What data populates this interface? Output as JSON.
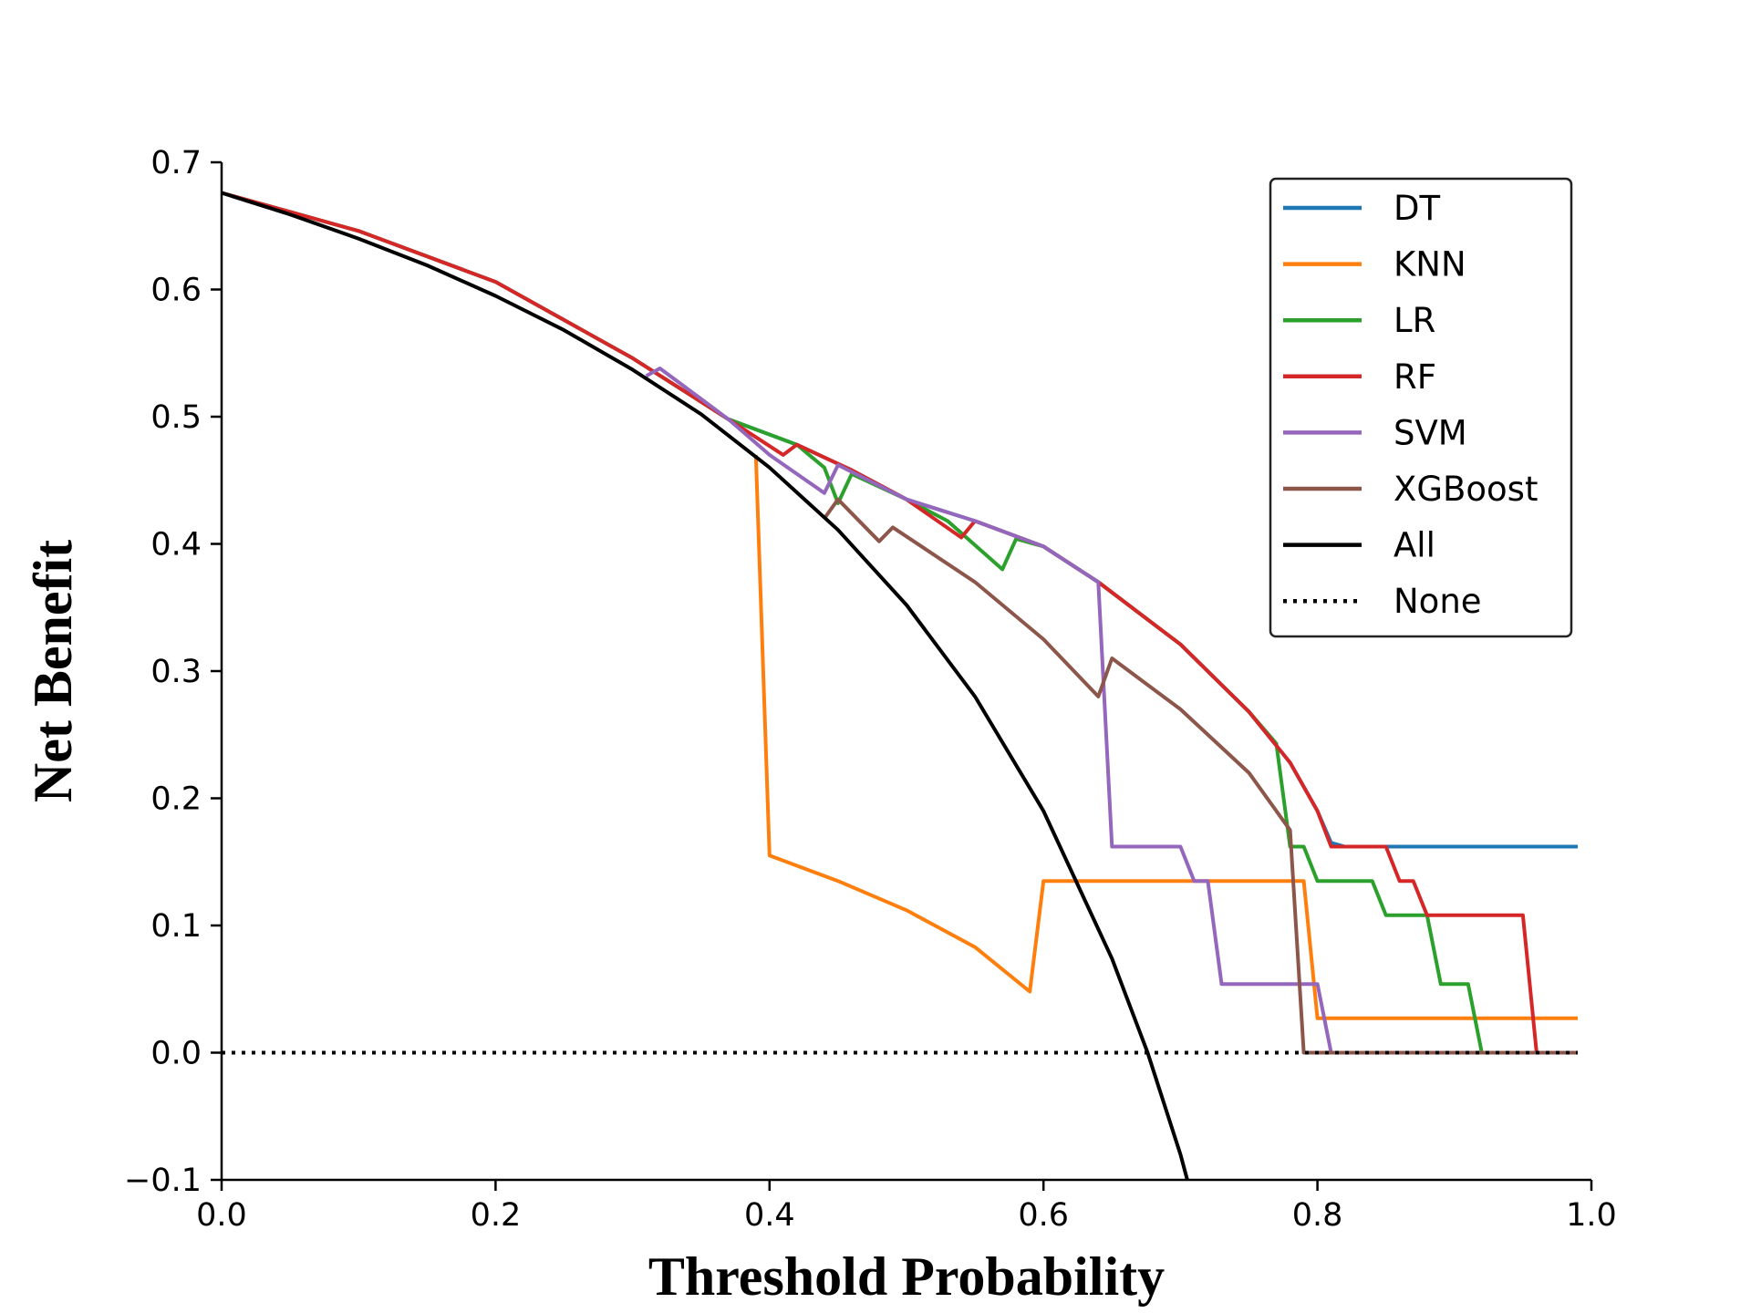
{
  "chart_data": {
    "type": "line",
    "title": "",
    "xlabel": "Threshold Probability",
    "ylabel": "Net Benefit",
    "xlim": [
      0.0,
      1.0
    ],
    "ylim": [
      -0.1,
      0.7
    ],
    "x_ticks": [
      "0.0",
      "0.2",
      "0.4",
      "0.6",
      "0.8",
      "1.0"
    ],
    "y_ticks": [
      "−0.1",
      "0.0",
      "0.1",
      "0.2",
      "0.3",
      "0.4",
      "0.5",
      "0.6",
      "0.7"
    ],
    "grid": false,
    "legend_position": "top-right",
    "series": [
      {
        "name": "DT",
        "color": "#1f77b4",
        "style": "solid",
        "points": [
          [
            0,
            0.676
          ],
          [
            0.1,
            0.646
          ],
          [
            0.2,
            0.606
          ],
          [
            0.3,
            0.546
          ],
          [
            0.37,
            0.498
          ],
          [
            0.42,
            0.478
          ],
          [
            0.46,
            0.458
          ],
          [
            0.5,
            0.435
          ],
          [
            0.55,
            0.418
          ],
          [
            0.6,
            0.398
          ],
          [
            0.64,
            0.37
          ],
          [
            0.7,
            0.321
          ],
          [
            0.75,
            0.268
          ],
          [
            0.78,
            0.228
          ],
          [
            0.8,
            0.19
          ],
          [
            0.81,
            0.165
          ],
          [
            0.82,
            0.162
          ],
          [
            0.99,
            0.162
          ]
        ]
      },
      {
        "name": "KNN",
        "color": "#ff7f0e",
        "style": "solid",
        "points": [
          [
            0.39,
            0.47
          ],
          [
            0.4,
            0.155
          ],
          [
            0.45,
            0.135
          ],
          [
            0.5,
            0.112
          ],
          [
            0.55,
            0.083
          ],
          [
            0.59,
            0.048
          ],
          [
            0.6,
            0.135
          ],
          [
            0.79,
            0.135
          ],
          [
            0.8,
            0.027
          ],
          [
            0.99,
            0.027
          ]
        ]
      },
      {
        "name": "LR",
        "color": "#2ca02c",
        "style": "solid",
        "points": [
          [
            0,
            0.676
          ],
          [
            0.1,
            0.646
          ],
          [
            0.2,
            0.606
          ],
          [
            0.3,
            0.546
          ],
          [
            0.37,
            0.498
          ],
          [
            0.42,
            0.478
          ],
          [
            0.44,
            0.46
          ],
          [
            0.45,
            0.432
          ],
          [
            0.46,
            0.455
          ],
          [
            0.5,
            0.435
          ],
          [
            0.53,
            0.418
          ],
          [
            0.57,
            0.38
          ],
          [
            0.58,
            0.404
          ],
          [
            0.6,
            0.398
          ],
          [
            0.64,
            0.37
          ],
          [
            0.7,
            0.321
          ],
          [
            0.75,
            0.268
          ],
          [
            0.77,
            0.243
          ],
          [
            0.78,
            0.162
          ],
          [
            0.79,
            0.162
          ],
          [
            0.8,
            0.135
          ],
          [
            0.84,
            0.135
          ],
          [
            0.85,
            0.108
          ],
          [
            0.88,
            0.108
          ],
          [
            0.89,
            0.054
          ],
          [
            0.91,
            0.054
          ],
          [
            0.92,
            0.0
          ],
          [
            0.99,
            0.0
          ]
        ]
      },
      {
        "name": "RF",
        "color": "#d62728",
        "style": "solid",
        "points": [
          [
            0,
            0.676
          ],
          [
            0.1,
            0.646
          ],
          [
            0.2,
            0.606
          ],
          [
            0.3,
            0.546
          ],
          [
            0.37,
            0.498
          ],
          [
            0.41,
            0.47
          ],
          [
            0.42,
            0.478
          ],
          [
            0.46,
            0.458
          ],
          [
            0.5,
            0.435
          ],
          [
            0.54,
            0.405
          ],
          [
            0.55,
            0.418
          ],
          [
            0.6,
            0.398
          ],
          [
            0.64,
            0.37
          ],
          [
            0.7,
            0.321
          ],
          [
            0.75,
            0.268
          ],
          [
            0.78,
            0.228
          ],
          [
            0.8,
            0.19
          ],
          [
            0.81,
            0.162
          ],
          [
            0.85,
            0.162
          ],
          [
            0.86,
            0.135
          ],
          [
            0.87,
            0.135
          ],
          [
            0.88,
            0.108
          ],
          [
            0.95,
            0.108
          ],
          [
            0.96,
            0.0
          ],
          [
            0.99,
            0.0
          ]
        ]
      },
      {
        "name": "SVM",
        "color": "#9467bd",
        "style": "solid",
        "points": [
          [
            0.31,
            0.532
          ],
          [
            0.32,
            0.538
          ],
          [
            0.37,
            0.498
          ],
          [
            0.4,
            0.47
          ],
          [
            0.44,
            0.44
          ],
          [
            0.45,
            0.462
          ],
          [
            0.5,
            0.435
          ],
          [
            0.55,
            0.418
          ],
          [
            0.6,
            0.398
          ],
          [
            0.64,
            0.37
          ],
          [
            0.65,
            0.162
          ],
          [
            0.7,
            0.162
          ],
          [
            0.71,
            0.135
          ],
          [
            0.72,
            0.135
          ],
          [
            0.73,
            0.054
          ],
          [
            0.8,
            0.054
          ],
          [
            0.81,
            0.0
          ],
          [
            0.99,
            0.0
          ]
        ]
      },
      {
        "name": "XGBoost",
        "color": "#8c564b",
        "style": "solid",
        "points": [
          [
            0.44,
            0.42
          ],
          [
            0.45,
            0.435
          ],
          [
            0.48,
            0.402
          ],
          [
            0.49,
            0.413
          ],
          [
            0.55,
            0.37
          ],
          [
            0.6,
            0.325
          ],
          [
            0.64,
            0.28
          ],
          [
            0.65,
            0.31
          ],
          [
            0.7,
            0.27
          ],
          [
            0.75,
            0.22
          ],
          [
            0.78,
            0.175
          ],
          [
            0.79,
            0.0
          ],
          [
            0.99,
            0.0
          ]
        ]
      },
      {
        "name": "All",
        "color": "#000000",
        "style": "solid",
        "points": [
          [
            0,
            0.676
          ],
          [
            0.05,
            0.659
          ],
          [
            0.1,
            0.64
          ],
          [
            0.15,
            0.619
          ],
          [
            0.2,
            0.595
          ],
          [
            0.25,
            0.568
          ],
          [
            0.3,
            0.537
          ],
          [
            0.35,
            0.502
          ],
          [
            0.4,
            0.46
          ],
          [
            0.45,
            0.411
          ],
          [
            0.5,
            0.352
          ],
          [
            0.55,
            0.28
          ],
          [
            0.6,
            0.19
          ],
          [
            0.65,
            0.074
          ],
          [
            0.676,
            0.0
          ],
          [
            0.7,
            -0.08
          ],
          [
            0.705,
            -0.1
          ]
        ]
      },
      {
        "name": "None",
        "color": "#000000",
        "style": "dotted",
        "points": [
          [
            0,
            0.0
          ],
          [
            0.99,
            0.0
          ]
        ]
      }
    ]
  }
}
